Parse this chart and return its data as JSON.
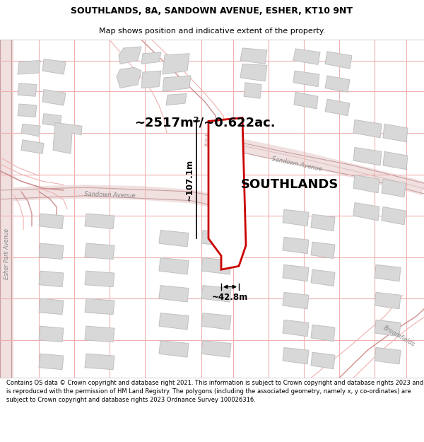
{
  "title_line1": "SOUTHLANDS, 8A, SANDOWN AVENUE, ESHER, KT10 9NT",
  "title_line2": "Map shows position and indicative extent of the property.",
  "area_text": "~2517m²/~0.622ac.",
  "property_label": "SOUTHLANDS",
  "dim_width": "~42.8m",
  "dim_height": "~107.1m",
  "footer_text": "Contains OS data © Crown copyright and database right 2021. This information is subject to Crown copyright and database rights 2023 and is reproduced with the permission of HM Land Registry. The polygons (including the associated geometry, namely x, y co-ordinates) are subject to Crown copyright and database rights 2023 Ordnance Survey 100026316.",
  "map_bg": "#ffffff",
  "road_line_color": "#f0b0b0",
  "road_main_color": "#e8a0a0",
  "building_fill": "#d8d8d8",
  "building_edge": "#c0c0c0",
  "property_fill": "#ffffff",
  "property_edge": "#cc0000",
  "text_color": "#000000",
  "road_label_color": "#888888",
  "title_bg": "#ffffff",
  "footer_bg": "#ffffff",
  "dim_line_color": "#000000"
}
